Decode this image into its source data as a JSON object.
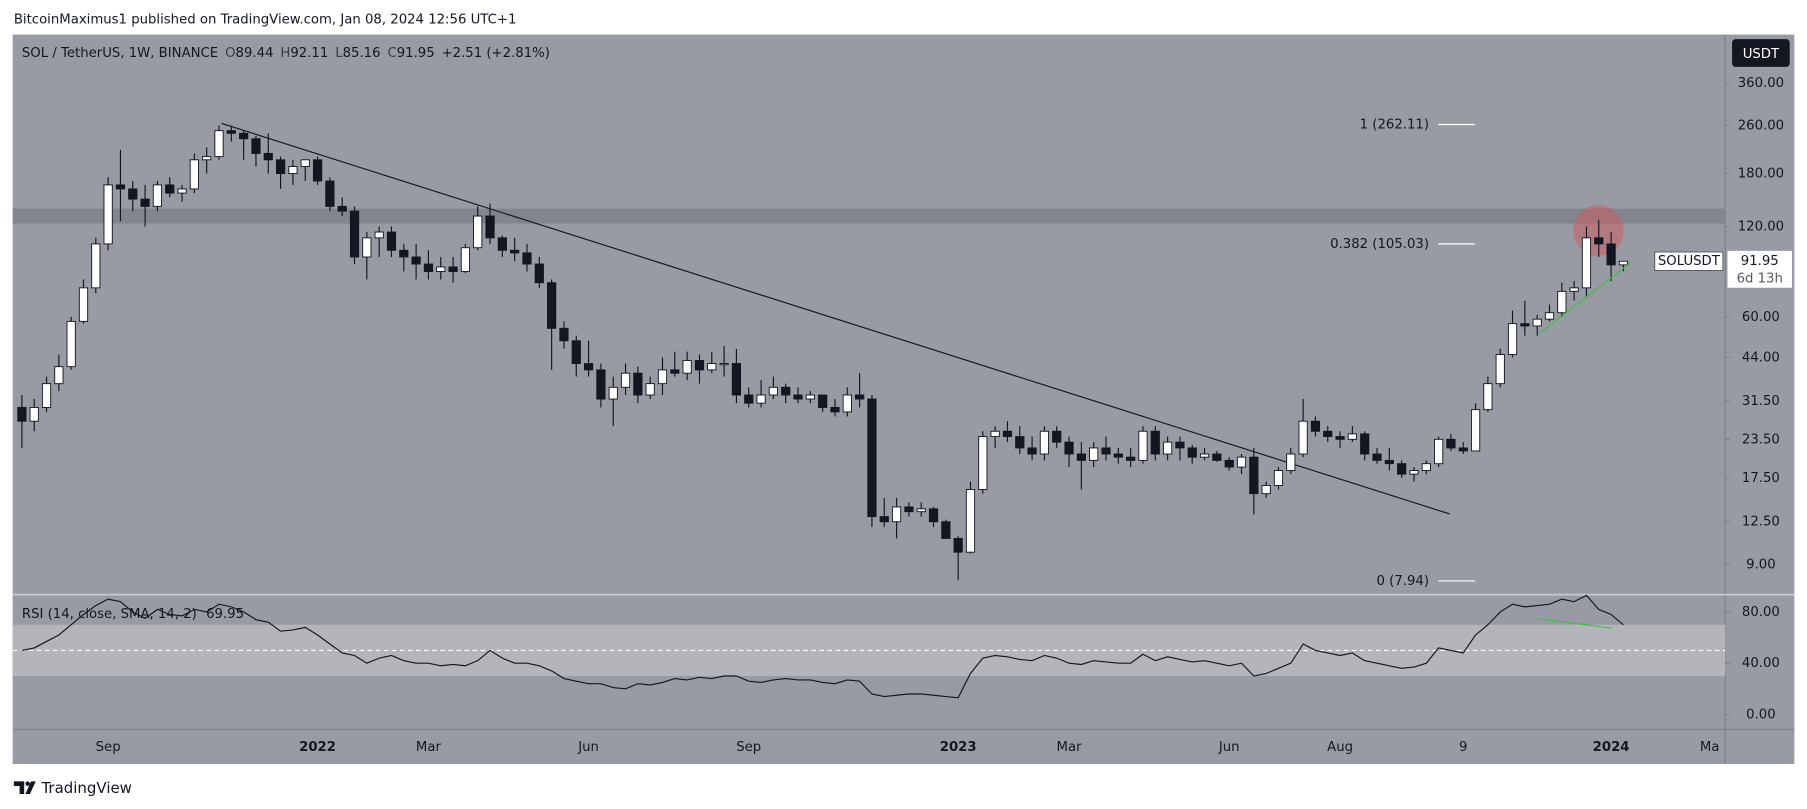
{
  "header": {
    "text": "BitcoinMaximus1 published on TradingView.com, Jan 08, 2024 12:56 UTC+1"
  },
  "currency_button": "USDT",
  "footer": {
    "logo": "TradingView"
  },
  "chart_data": [
    {
      "type": "candlestick",
      "title": "SOL / TetherUS, 1W, BINANCE",
      "ohlc": [
        {
          "key": "O",
          "value": "89.44"
        },
        {
          "key": "H",
          "value": "92.11"
        },
        {
          "key": "L",
          "value": "85.16"
        },
        {
          "key": "C",
          "value": "91.95"
        }
      ],
      "change": "+2.51 (+2.81%)",
      "categories": [
        null,
        null,
        null,
        null,
        null,
        null,
        null,
        "Sep",
        null,
        null,
        null,
        null,
        null,
        null,
        null,
        null,
        null,
        null,
        null,
        null,
        null,
        null,
        null,
        null,
        "2022",
        null,
        null,
        null,
        null,
        null,
        null,
        null,
        null,
        "Mar",
        null,
        null,
        null,
        null,
        null,
        null,
        null,
        null,
        null,
        null,
        null,
        null,
        "Jun",
        null,
        null,
        null,
        null,
        null,
        null,
        null,
        null,
        null,
        null,
        null,
        null,
        "Sep",
        null,
        null,
        null,
        null,
        null,
        null,
        null,
        null,
        null,
        null,
        null,
        null,
        null,
        null,
        null,
        null,
        "2023",
        null,
        null,
        null,
        null,
        null,
        null,
        null,
        null,
        "Mar",
        null,
        null,
        null,
        null,
        null,
        null,
        null,
        null,
        null,
        null,
        null,
        null,
        "Jun",
        null,
        null,
        null,
        null,
        null,
        null,
        null,
        null,
        "Aug",
        null,
        null,
        null,
        null,
        null,
        null,
        null,
        null,
        null,
        "9",
        null,
        null,
        null,
        null,
        null,
        null,
        null,
        null,
        null,
        null,
        null,
        "2024",
        null,
        null,
        null,
        null,
        null,
        null,
        null,
        "Ma",
        null
      ],
      "open": [
        30,
        27,
        30,
        36,
        41,
        58,
        75,
        105,
        165,
        160,
        148,
        140,
        165,
        155,
        160,
        200,
        205,
        250,
        245,
        235,
        210,
        200,
        180,
        190,
        200,
        170,
        140,
        135,
        95,
        110,
        115,
        100,
        95,
        90,
        85,
        88,
        85,
        102,
        130,
        110,
        100,
        98,
        90,
        78,
        55,
        50,
        42,
        40,
        32,
        35,
        39,
        33,
        36,
        40,
        39,
        43,
        40,
        42,
        42,
        33,
        31,
        33,
        35,
        33,
        32,
        33,
        30,
        29,
        33,
        32,
        13,
        12.5,
        14,
        13.5,
        13.8,
        12.5,
        11,
        9.9,
        16,
        24,
        25,
        24,
        22,
        21,
        25,
        23,
        21,
        20,
        22,
        21,
        20.5,
        20,
        25,
        21,
        23,
        22,
        20.5,
        21,
        20,
        19,
        20.5,
        15.5,
        16.5,
        18.5,
        21,
        27,
        25,
        24,
        23.5,
        24.5,
        21,
        20,
        19.5,
        18,
        18.5,
        19.5,
        23.5,
        22,
        21.5,
        29.5,
        36,
        45,
        57,
        56,
        59,
        62,
        73,
        75,
        110,
        105,
        89.44,
        null,
        null,
        null,
        null,
        null,
        null,
        null,
        null
      ],
      "high": [
        33,
        32,
        38,
        45,
        60,
        80,
        110,
        175,
        216,
        170,
        165,
        170,
        175,
        165,
        210,
        220,
        260,
        260,
        250,
        240,
        245,
        205,
        200,
        200,
        205,
        175,
        150,
        140,
        115,
        120,
        120,
        105,
        105,
        100,
        95,
        95,
        105,
        140,
        143,
        112,
        110,
        105,
        95,
        80,
        58,
        52,
        50,
        42,
        38,
        42,
        41,
        38,
        44,
        46,
        46,
        45,
        46,
        48,
        47,
        35,
        37,
        38,
        36,
        35,
        34,
        33,
        32,
        35,
        39,
        33,
        15,
        15,
        14.5,
        14.5,
        14,
        12.7,
        11.2,
        17,
        25,
        26,
        27,
        26,
        24,
        26,
        26,
        24,
        23,
        23,
        24,
        22,
        22,
        26,
        26,
        24,
        24,
        22.5,
        22,
        21.5,
        20.5,
        21,
        22,
        17,
        19,
        22,
        32,
        28,
        26,
        25,
        26,
        25,
        22,
        22,
        20,
        19,
        20,
        24,
        24.5,
        23,
        31,
        38,
        47,
        63,
        68,
        61,
        66,
        78,
        79,
        120,
        126,
        115,
        92.11,
        null,
        null,
        null,
        null,
        null,
        null,
        null,
        null
      ],
      "low": [
        22,
        25,
        29,
        34,
        40,
        57,
        72,
        100,
        125,
        135,
        120,
        135,
        150,
        145,
        155,
        180,
        200,
        230,
        200,
        190,
        180,
        160,
        165,
        170,
        165,
        135,
        130,
        90,
        80,
        95,
        95,
        85,
        80,
        80,
        80,
        78,
        84,
        100,
        105,
        95,
        92,
        85,
        75,
        40,
        47,
        38,
        38,
        30,
        26,
        33,
        31,
        32,
        33,
        38,
        37,
        36,
        39,
        38,
        31,
        30,
        30,
        32,
        31,
        31,
        31,
        29,
        28,
        28,
        30,
        12,
        12,
        11,
        13,
        13,
        12,
        11,
        8,
        9.8,
        15.5,
        22,
        23,
        21,
        20,
        20,
        22,
        19,
        16,
        19,
        20,
        19.5,
        19,
        19.5,
        20,
        20,
        20,
        19.5,
        20,
        19.8,
        18.5,
        18,
        13.2,
        15,
        16,
        18,
        20.5,
        24,
        23,
        22,
        23,
        20,
        19.5,
        18.5,
        17.5,
        17,
        18,
        19,
        21.5,
        21,
        21.5,
        29,
        35,
        44,
        52,
        52,
        58,
        60,
        68,
        70,
        95,
        79,
        85.16,
        null,
        null,
        null,
        null,
        null,
        null,
        null,
        null
      ],
      "close": [
        27,
        30,
        36,
        41,
        58,
        75,
        105,
        165,
        160,
        148,
        140,
        165,
        155,
        160,
        200,
        205,
        250,
        245,
        235,
        210,
        200,
        180,
        190,
        200,
        170,
        140,
        135,
        95,
        110,
        115,
        100,
        95,
        90,
        85,
        88,
        85,
        102,
        130,
        110,
        100,
        98,
        90,
        78,
        55,
        50,
        42,
        40,
        32,
        35,
        39,
        33,
        36,
        40,
        39,
        43,
        40,
        42,
        42,
        33,
        31,
        33,
        35,
        33,
        32,
        33,
        30,
        29,
        33,
        32,
        13,
        12.5,
        14,
        13.5,
        13.8,
        12.5,
        11,
        9.9,
        16,
        24,
        25,
        24,
        22,
        21,
        25,
        23,
        21,
        20,
        22,
        21,
        20.5,
        20,
        25,
        21,
        23,
        22,
        20.5,
        21,
        20,
        19,
        20.5,
        15.5,
        16.5,
        18.5,
        21,
        27,
        25,
        24,
        23.5,
        24.5,
        21,
        20,
        19.5,
        18,
        18.5,
        19.5,
        23.5,
        22,
        21.5,
        29.5,
        36,
        45,
        57,
        56,
        59,
        62,
        73,
        75,
        110,
        105,
        89.44,
        91.95,
        null,
        null,
        null,
        null,
        null,
        null,
        null,
        null
      ],
      "up_color": "#ffffff",
      "down_color": "#131722",
      "log_scale": true,
      "ylim": [
        7.15,
        522
      ],
      "yticks": [
        {
          "value": 360,
          "label": "360.00"
        },
        {
          "value": 260,
          "label": "260.00"
        },
        {
          "value": 180,
          "label": "180.00"
        },
        {
          "value": 120,
          "label": "120.00"
        },
        {
          "value": 60,
          "label": "60.00"
        },
        {
          "value": 44,
          "label": "44.00"
        },
        {
          "value": 31.5,
          "label": "31.50"
        },
        {
          "value": 23.5,
          "label": "23.50"
        },
        {
          "value": 17.5,
          "label": "17.50"
        },
        {
          "value": 12.5,
          "label": "12.50"
        },
        {
          "value": 9,
          "label": "9.00"
        }
      ],
      "last_price": {
        "symbol": "SOLUSDT",
        "value": 91.95,
        "countdown": "6d 13h"
      },
      "fib_levels": [
        {
          "value": 262.11,
          "label": "1 (262.11)"
        },
        {
          "value": 105.03,
          "label": "0.382 (105.03)"
        },
        {
          "value": 7.94,
          "label": "0 (7.94)"
        }
      ]
    },
    {
      "type": "line",
      "title": "RSI (14, close, SMA, 14, 2)",
      "color": "#131722",
      "values": [
        50,
        52,
        57,
        62,
        70,
        78,
        85,
        90,
        88,
        80,
        75,
        82,
        78,
        77,
        82,
        80,
        86,
        84,
        80,
        74,
        72,
        65,
        66,
        68,
        62,
        55,
        48,
        46,
        40,
        44,
        46,
        42,
        40,
        40,
        38,
        39,
        38,
        42,
        50,
        44,
        40,
        40,
        38,
        34,
        28,
        26,
        24,
        24,
        21,
        20,
        24,
        23,
        25,
        28,
        27,
        29,
        28,
        30,
        30,
        26,
        25,
        27,
        28,
        27,
        27,
        25,
        24,
        27,
        26,
        16,
        14,
        15,
        16,
        16,
        15,
        14,
        13,
        32,
        44,
        46,
        45,
        43,
        42,
        46,
        44,
        40,
        39,
        42,
        41,
        40,
        40,
        47,
        42,
        45,
        43,
        41,
        42,
        40,
        38,
        40,
        30,
        32,
        36,
        40,
        55,
        50,
        48,
        46,
        48,
        42,
        40,
        38,
        36,
        37,
        40,
        52,
        50,
        48,
        62,
        70,
        80,
        86,
        84,
        85,
        86,
        90,
        88,
        93,
        82,
        78,
        69.95,
        null,
        null,
        null,
        null,
        null,
        null,
        null,
        null
      ],
      "ylim": [
        -11.7,
        93.5
      ],
      "yticks": [
        {
          "value": 80,
          "label": "80.00"
        },
        {
          "value": 40,
          "label": "40.00"
        },
        {
          "value": 0,
          "label": "0.00"
        }
      ],
      "band": [
        30,
        70
      ],
      "midline": 50
    }
  ]
}
